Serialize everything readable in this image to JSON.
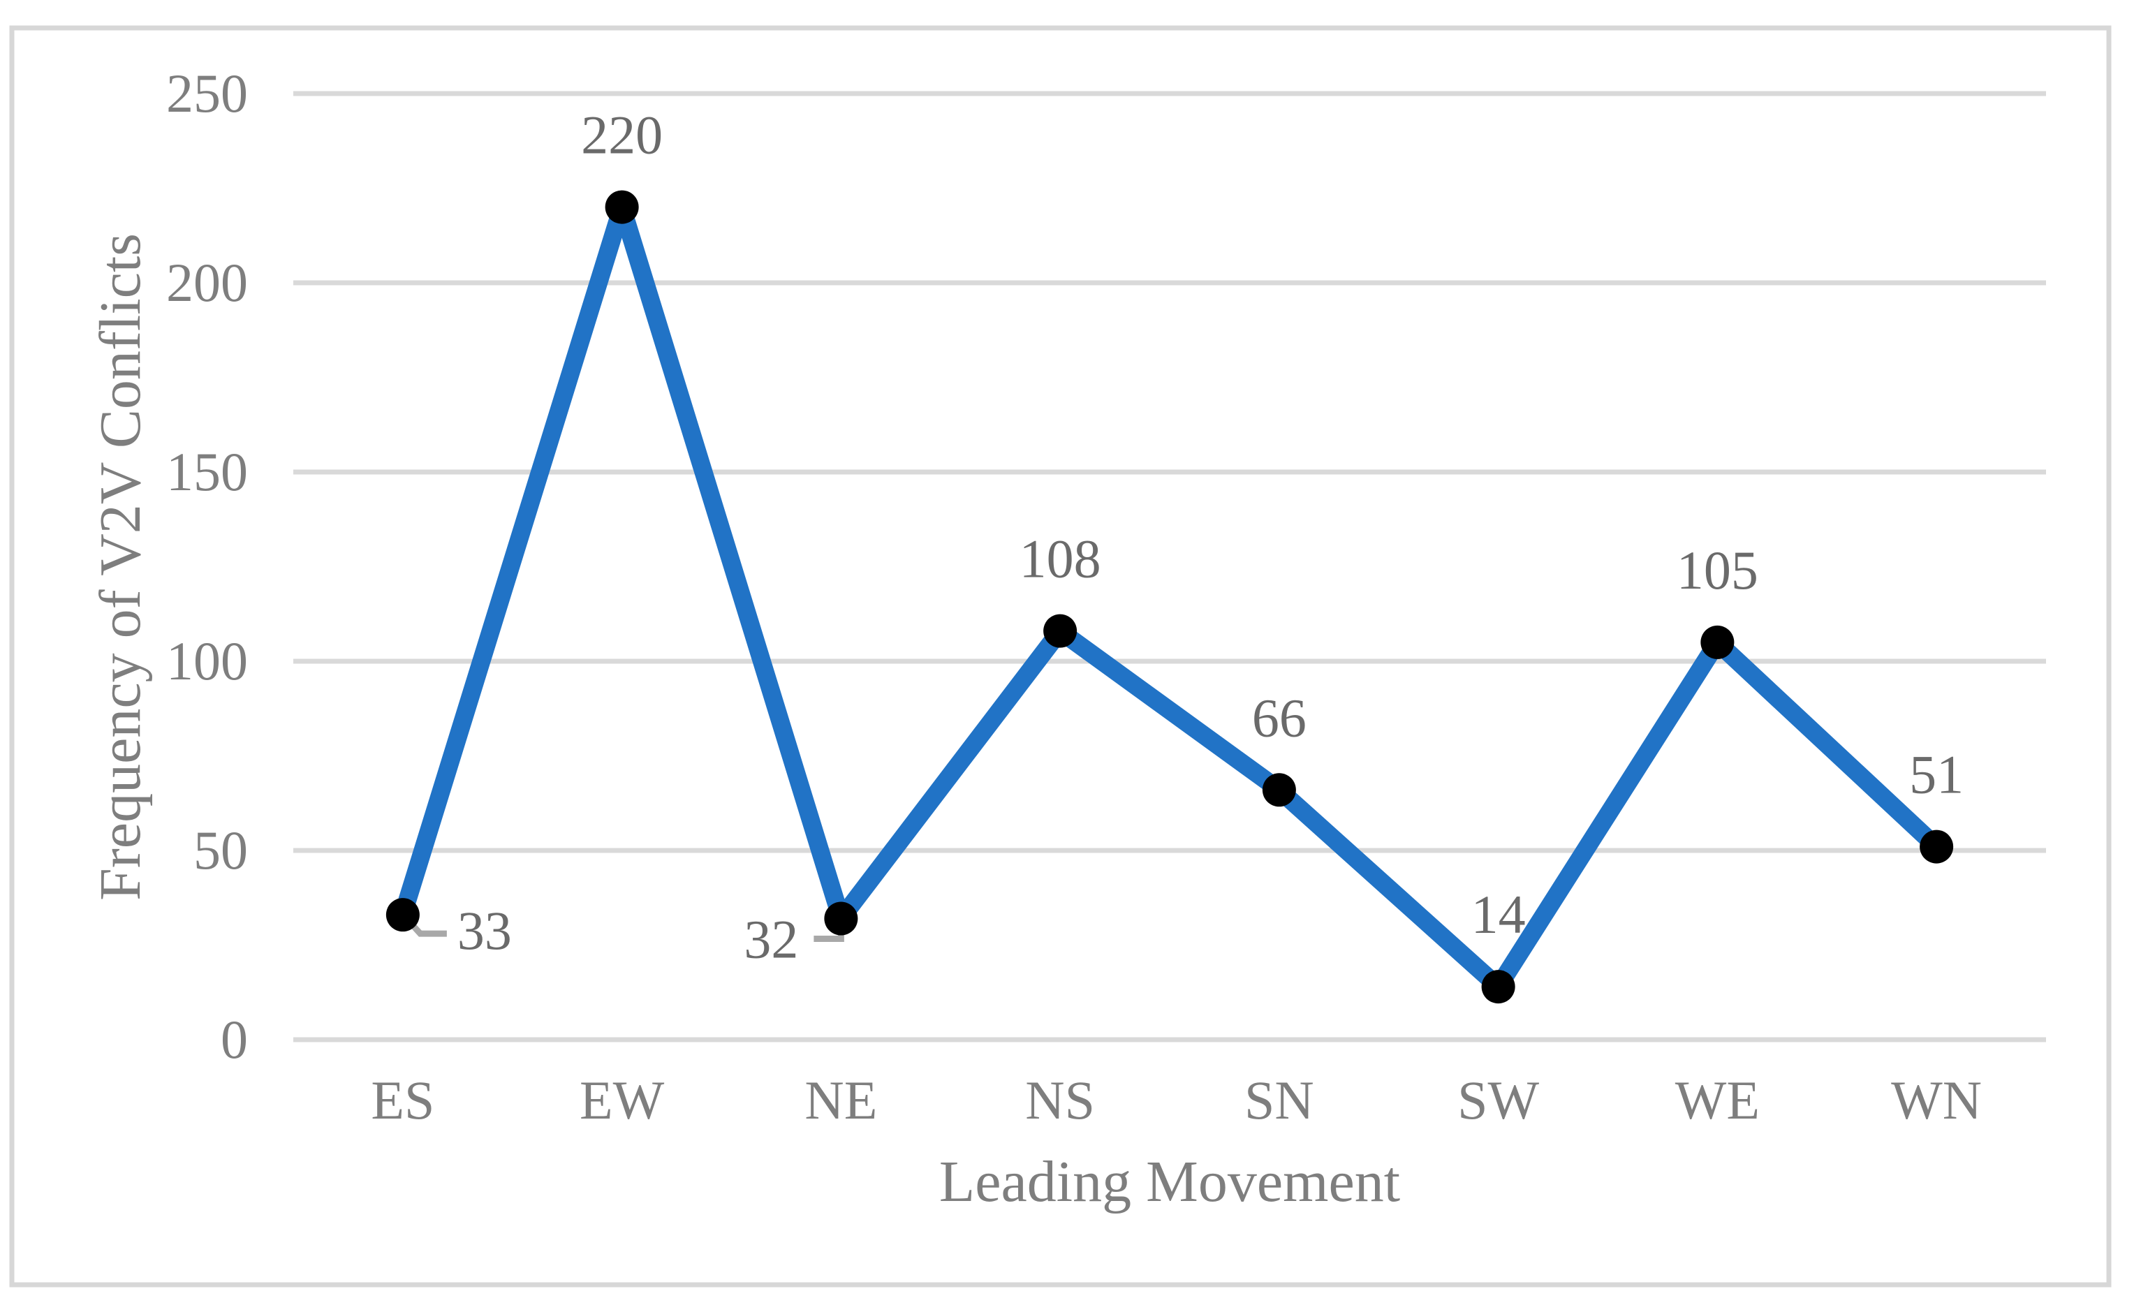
{
  "chart_data": {
    "type": "line",
    "title": "",
    "xlabel": "Leading Movement",
    "ylabel": "Frequency of V2V Conflicts",
    "categories": [
      "ES",
      "EW",
      "NE",
      "NS",
      "SN",
      "SW",
      "WE",
      "WN"
    ],
    "values": [
      33,
      220,
      32,
      108,
      66,
      14,
      105,
      51
    ],
    "data_label_texts": [
      "33",
      "220",
      "32",
      "108",
      "66",
      "14",
      "105",
      "51"
    ],
    "label_placements": [
      "right-leader",
      "above",
      "left-leader",
      "above",
      "above",
      "above",
      "above",
      "above"
    ],
    "yticks": [
      0,
      50,
      100,
      150,
      200,
      250
    ],
    "ylim": [
      0,
      250
    ],
    "grid": "horizontal-only",
    "legend": false,
    "colors": {
      "series_line": "#2173C6",
      "marker": "#000000",
      "gridline": "#D9D9D9",
      "frame_border": "#D7D7D7",
      "axis_text": "#7E7E7E",
      "data_label_text": "#6A6A6A",
      "leader_line": "#A8A8A8",
      "background": "#FFFFFF"
    }
  }
}
